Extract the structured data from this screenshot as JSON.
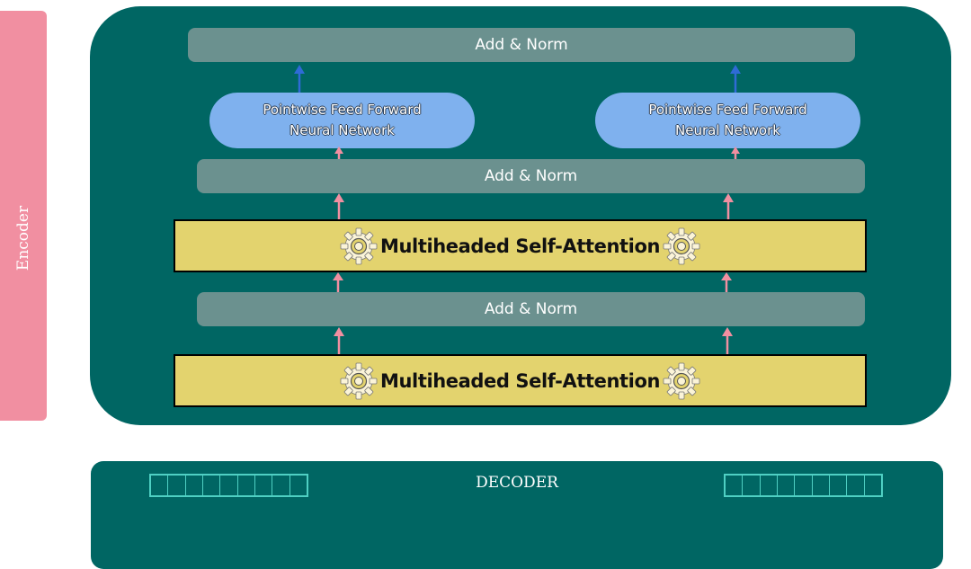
{
  "encoder_label": "Encoder",
  "top_add_norm": "Add & Norm",
  "ffn_left": {
    "line1": "Pointwise Feed Forward",
    "line2": "Neural Network"
  },
  "ffn_right": {
    "line1": "Pointwise Feed Forward",
    "line2": "Neural Network"
  },
  "mid_add_norm": "Add & Norm",
  "attention_upper": "Multiheaded Self-Attention",
  "lower_add_norm": "Add & Norm",
  "attention_lower": "Multiheaded Self-Attention",
  "decoder_label": "DECODER",
  "decoder_vector_cells": 9,
  "icons": {
    "attention": "gear-icon",
    "flow_up_pink": "arrow-up-icon",
    "flow_up_blue": "arrow-up-icon"
  },
  "colors": {
    "encoder_side": "#f18fa1",
    "encoder_box": "#006663",
    "add_norm": "#6b918f",
    "ffn": "#7fb1ee",
    "attention": "#e3d36e",
    "pink_arrow": "#f18fa1",
    "blue_arrow": "#2f6bd6",
    "decoder_box": "#006663",
    "vector_outline": "#4fd0c3"
  }
}
